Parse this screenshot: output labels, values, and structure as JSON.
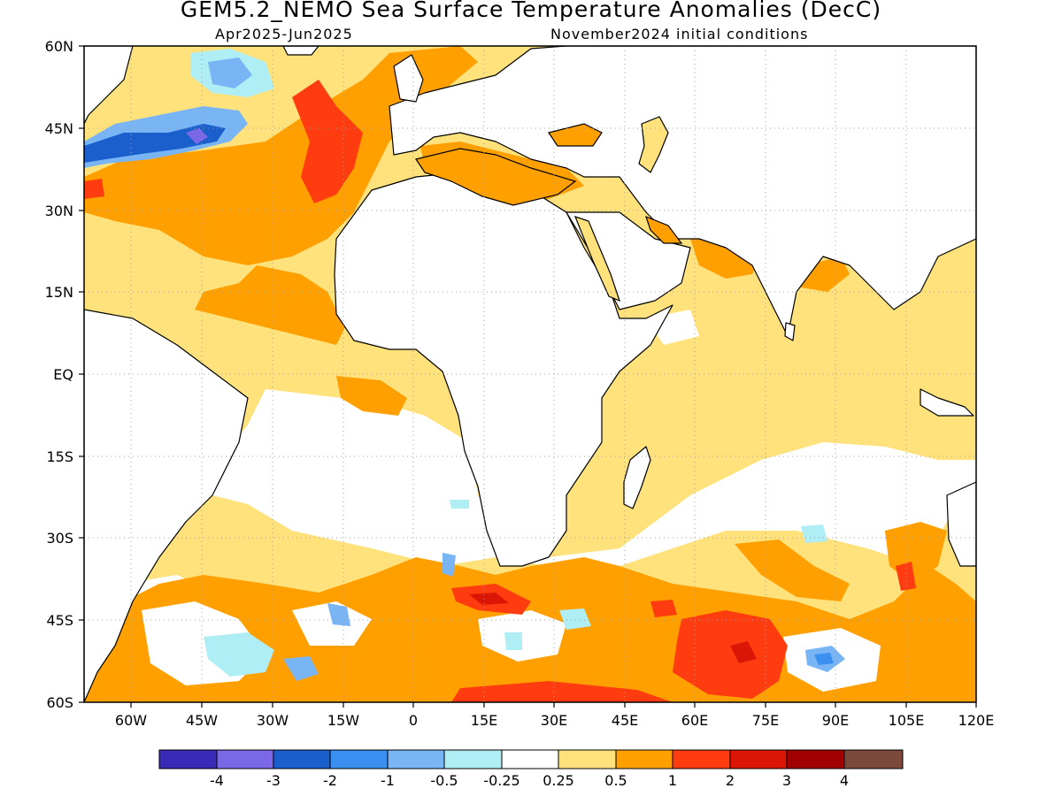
{
  "title": "GEM5.2_NEMO Sea Surface Temperature Anomalies (DecC)",
  "subtitle_left": "Apr2025-Jun2025",
  "subtitle_right": "November2024 initial conditions",
  "chart_data": {
    "type": "heatmap",
    "x_ticks": [
      {
        "lon": -60,
        "label": "60W"
      },
      {
        "lon": -45,
        "label": "45W"
      },
      {
        "lon": -30,
        "label": "30W"
      },
      {
        "lon": -15,
        "label": "15W"
      },
      {
        "lon": 0,
        "label": "0"
      },
      {
        "lon": 15,
        "label": "15E"
      },
      {
        "lon": 30,
        "label": "30E"
      },
      {
        "lon": 45,
        "label": "45E"
      },
      {
        "lon": 60,
        "label": "60E"
      },
      {
        "lon": 75,
        "label": "75E"
      },
      {
        "lon": 90,
        "label": "90E"
      },
      {
        "lon": 105,
        "label": "105E"
      },
      {
        "lon": 120,
        "label": "120E"
      }
    ],
    "y_ticks": [
      {
        "lat": 60,
        "label": "60N"
      },
      {
        "lat": 45,
        "label": "45N"
      },
      {
        "lat": 30,
        "label": "30N"
      },
      {
        "lat": 15,
        "label": "15N"
      },
      {
        "lat": 0,
        "label": "EQ"
      },
      {
        "lat": -15,
        "label": "15S"
      },
      {
        "lat": -30,
        "label": "30S"
      },
      {
        "lat": -45,
        "label": "45S"
      },
      {
        "lat": -60,
        "label": "60S"
      }
    ],
    "lon_range": [
      -70,
      120
    ],
    "lat_range": [
      -60,
      60
    ],
    "grid": "dotted",
    "legend": {
      "placement": "bottom",
      "colors": [
        "#3a2ab8",
        "#7b68e6",
        "#1a5fcc",
        "#3b8ff0",
        "#79b5f5",
        "#b0eef6",
        "#ffffff",
        "#ffe27c",
        "#ffa000",
        "#ff3c0f",
        "#db1606",
        "#a00000",
        "#7b4a3a"
      ],
      "labels": [
        "-4",
        "-3",
        "-2",
        "-1",
        "-0.5",
        "-0.25",
        "0.25",
        "0.5",
        "1",
        "2",
        "3",
        "4"
      ]
    },
    "anomaly_regions": [
      {
        "level": "0.25-0.5",
        "color": "#ffe27c",
        "areas": [
          "North Atlantic",
          "tropical Atlantic",
          "Arabian Sea",
          "Bay of Bengal",
          "Indian Ocean north of 20S",
          "South Atlantic",
          "Southern Ocean"
        ]
      },
      {
        "level": "0.5-1",
        "color": "#ffa000",
        "areas": [
          "subtropical North Atlantic",
          "Gulf Stream region",
          "Mediterranean",
          "Persian Gulf",
          "Southern Ocean 35S-60S"
        ]
      },
      {
        "level": "1-2",
        "color": "#ff3c0f",
        "areas": [
          "mid-Atlantic near 40N",
          "Southern Indian Ocean 45S-60S",
          "off South Africa 40S"
        ]
      },
      {
        "level": "-0.5 to -2",
        "color": "#3b8ff0",
        "areas": [
          "western North Atlantic 40-50N",
          "Labrador Sea"
        ]
      },
      {
        "level": "-0.25 to -1",
        "color": "#b0eef6",
        "areas": [
          "scattered South Atlantic and Southern Ocean patches"
        ]
      }
    ]
  }
}
